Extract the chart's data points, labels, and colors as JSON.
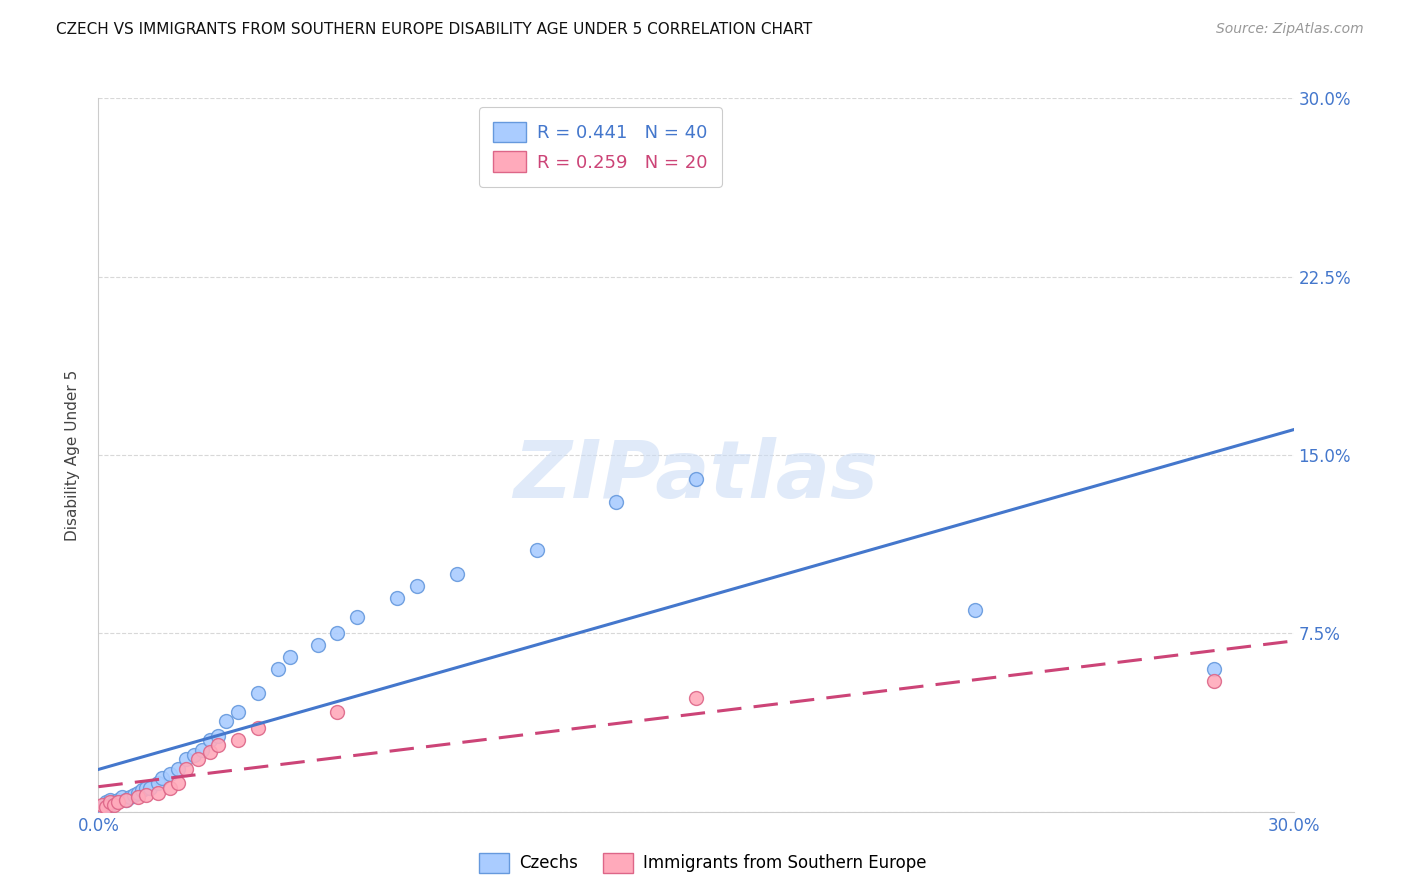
{
  "title": "CZECH VS IMMIGRANTS FROM SOUTHERN EUROPE DISABILITY AGE UNDER 5 CORRELATION CHART",
  "source": "Source: ZipAtlas.com",
  "ylabel": "Disability Age Under 5",
  "xlim": [
    0.0,
    0.3
  ],
  "ylim": [
    0.0,
    0.3
  ],
  "xticks": [
    0.0,
    0.05,
    0.1,
    0.15,
    0.2,
    0.25,
    0.3
  ],
  "yticks": [
    0.0,
    0.075,
    0.15,
    0.225,
    0.3
  ],
  "ytick_labels_right": [
    "",
    "7.5%",
    "15.0%",
    "22.5%",
    "30.0%"
  ],
  "xtick_labels": [
    "0.0%",
    "",
    "",
    "",
    "",
    "",
    "30.0%"
  ],
  "background_color": "#ffffff",
  "grid_color": "#d8d8d8",
  "watermark": "ZIPatlas",
  "czech_color": "#aaccff",
  "czech_edge_color": "#6699dd",
  "czech_line_color": "#4477cc",
  "czech_R": 0.441,
  "czech_N": 40,
  "immigrant_color": "#ffaabb",
  "immigrant_edge_color": "#dd6688",
  "immigrant_line_color": "#cc4477",
  "immigrant_R": 0.259,
  "immigrant_N": 20,
  "legend_label_1": "R = 0.441   N = 40",
  "legend_label_2": "R = 0.259   N = 20",
  "bottom_legend_1": "Czechs",
  "bottom_legend_2": "Immigrants from Southern Europe",
  "czech_x": [
    0.001,
    0.002,
    0.002,
    0.003,
    0.003,
    0.004,
    0.005,
    0.006,
    0.007,
    0.008,
    0.009,
    0.01,
    0.011,
    0.012,
    0.013,
    0.015,
    0.016,
    0.018,
    0.02,
    0.022,
    0.024,
    0.026,
    0.028,
    0.03,
    0.032,
    0.035,
    0.04,
    0.045,
    0.048,
    0.055,
    0.06,
    0.065,
    0.075,
    0.08,
    0.09,
    0.11,
    0.13,
    0.15,
    0.22,
    0.28
  ],
  "czech_y": [
    0.002,
    0.003,
    0.004,
    0.003,
    0.005,
    0.004,
    0.005,
    0.006,
    0.005,
    0.006,
    0.007,
    0.008,
    0.009,
    0.01,
    0.01,
    0.012,
    0.014,
    0.016,
    0.018,
    0.022,
    0.024,
    0.026,
    0.03,
    0.032,
    0.038,
    0.042,
    0.05,
    0.06,
    0.065,
    0.07,
    0.075,
    0.082,
    0.09,
    0.095,
    0.1,
    0.11,
    0.13,
    0.14,
    0.085,
    0.06
  ],
  "immigrant_x": [
    0.001,
    0.002,
    0.003,
    0.004,
    0.005,
    0.007,
    0.01,
    0.012,
    0.015,
    0.018,
    0.02,
    0.022,
    0.025,
    0.028,
    0.03,
    0.035,
    0.04,
    0.06,
    0.15,
    0.28
  ],
  "immigrant_y": [
    0.003,
    0.002,
    0.004,
    0.003,
    0.004,
    0.005,
    0.006,
    0.007,
    0.008,
    0.01,
    0.012,
    0.018,
    0.022,
    0.025,
    0.028,
    0.03,
    0.035,
    0.042,
    0.048,
    0.055
  ],
  "marker_size": 100,
  "line_width": 2.2
}
